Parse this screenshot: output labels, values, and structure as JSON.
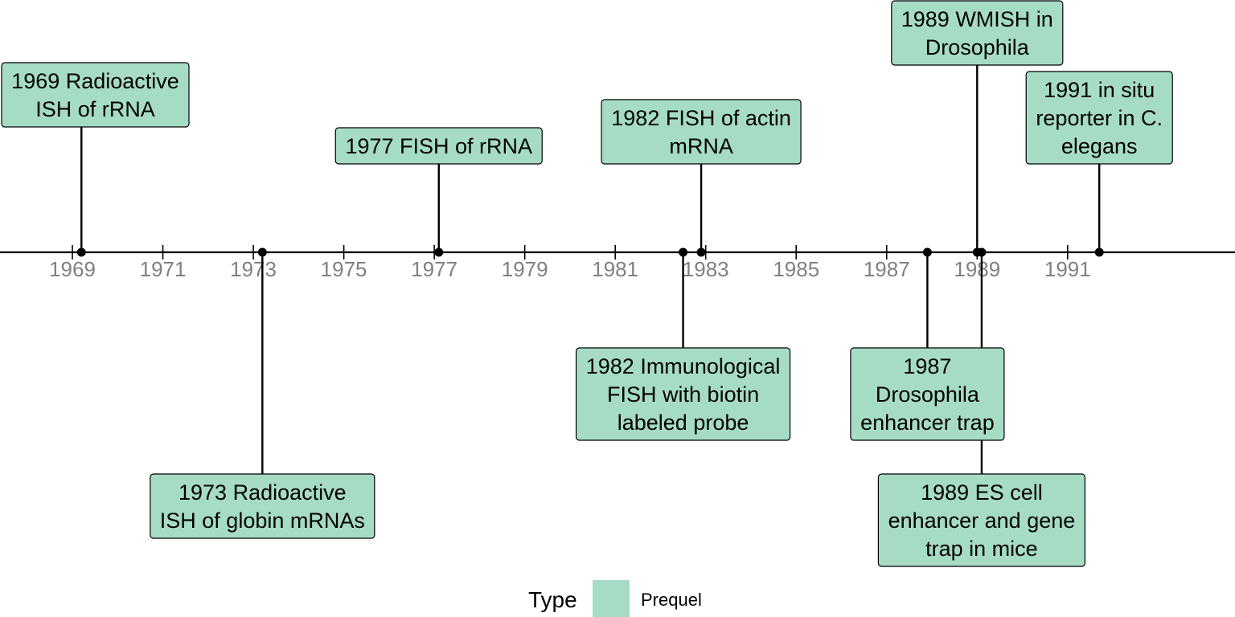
{
  "chart_data": {
    "type": "timeline",
    "axis": {
      "min": 1967.4,
      "max": 1994.7,
      "ticks": [
        1969,
        1971,
        1973,
        1975,
        1977,
        1979,
        1981,
        1983,
        1985,
        1987,
        1989,
        1991
      ]
    },
    "events": [
      {
        "year": 1969.2,
        "label": "1969 Radioactive ISH of rRNA",
        "lines": [
          "1969 Radioactive",
          "ISH of rRNA"
        ],
        "side": "above",
        "tier": 2
      },
      {
        "year": 1973.2,
        "label": "1973 Radioactive ISH of globin mRNAs",
        "lines": [
          "1973 Radioactive",
          "ISH of globin mRNAs"
        ],
        "side": "below",
        "tier": 2
      },
      {
        "year": 1977.1,
        "label": "1977 FISH of rRNA",
        "lines": [
          "1977 FISH of rRNA"
        ],
        "side": "above",
        "tier": 1
      },
      {
        "year": 1982.5,
        "label": "1982 Immunological FISH with biotin labeled probe",
        "lines": [
          "1982 Immunological",
          "FISH with biotin",
          "labeled probe"
        ],
        "side": "below",
        "tier": 1
      },
      {
        "year": 1982.9,
        "label": "1982 FISH of actin mRNA",
        "lines": [
          "1982 FISH of actin",
          "mRNA"
        ],
        "side": "above",
        "tier": 1
      },
      {
        "year": 1987.9,
        "label": "1987 Drosophila enhancer trap",
        "lines": [
          "1987",
          "Drosophila",
          "enhancer trap"
        ],
        "side": "below",
        "tier": 1
      },
      {
        "year": 1989.0,
        "label": "1989 WMISH in Drosophila",
        "lines": [
          "1989 WMISH in",
          "Drosophila"
        ],
        "side": "above",
        "tier": 3
      },
      {
        "year": 1989.1,
        "label": "1989 ES cell enhancer and gene trap in mice",
        "lines": [
          "1989 ES cell",
          "enhancer and gene",
          "trap in mice"
        ],
        "side": "below",
        "tier": 2
      },
      {
        "year": 1991.7,
        "label": "1991 in situ reporter in C. elegans",
        "lines": [
          "1991 in situ",
          "reporter in C.",
          "elegans"
        ],
        "side": "above",
        "tier": 1
      }
    ],
    "legend": {
      "title": "Type",
      "entries": [
        {
          "label": "Prequel",
          "color": "#a6dcc3"
        }
      ],
      "position": "bottom"
    },
    "colors": {
      "box_fill": "#a6dcc3",
      "axis": "#000000",
      "tick_label": "#808080"
    }
  }
}
